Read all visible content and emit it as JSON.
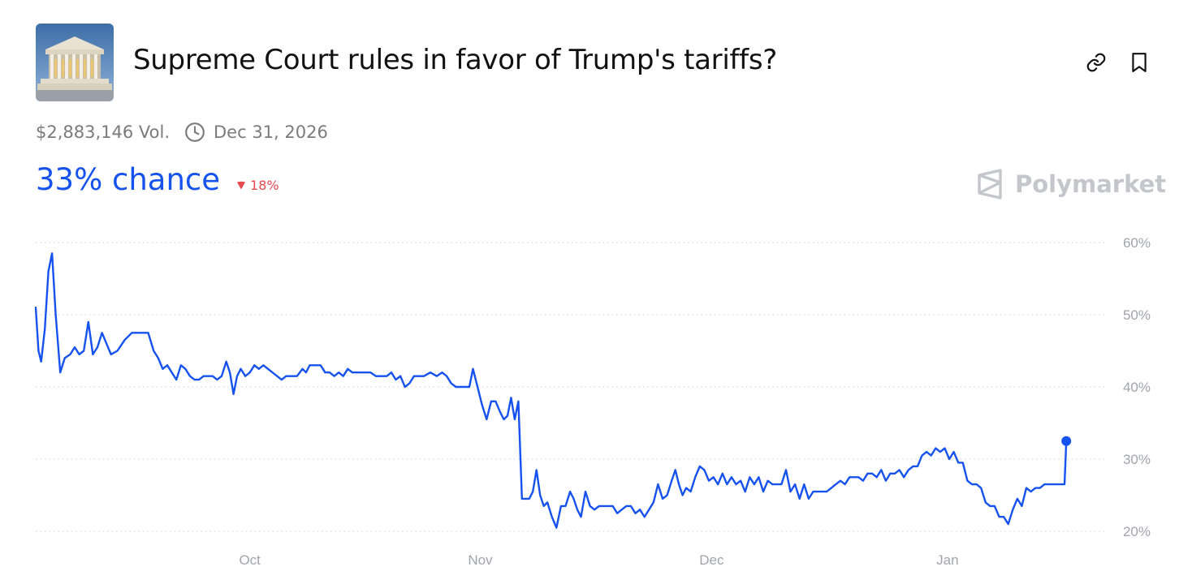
{
  "header": {
    "title": "Supreme Court rules in favor of Trump's tariffs?",
    "thumbnail_icon": "supreme-court-thumbnail",
    "link_icon": "link-icon",
    "bookmark_icon": "bookmark-icon"
  },
  "meta": {
    "volume": "$2,883,146 Vol.",
    "end_date": "Dec 31, 2026"
  },
  "summary": {
    "chance": "33% chance",
    "change": "18%",
    "change_direction": "down"
  },
  "brand": {
    "name": "Polymarket"
  },
  "colors": {
    "accent": "#1652f0",
    "negative": "#e5484d",
    "grid": "#d8dadf",
    "axis_text": "#a0a4ab"
  },
  "chart_data": {
    "type": "line",
    "series": [
      {
        "values": [
          [
            0,
            51
          ],
          [
            0.3,
            45
          ],
          [
            0.6,
            43.5
          ],
          [
            1,
            48
          ],
          [
            1.4,
            56
          ],
          [
            1.8,
            58.5
          ],
          [
            2.2,
            50
          ],
          [
            2.7,
            42
          ],
          [
            3.2,
            44
          ],
          [
            3.8,
            44.5
          ],
          [
            4.3,
            45.5
          ],
          [
            4.8,
            44.5
          ],
          [
            5.3,
            45
          ],
          [
            5.8,
            49
          ],
          [
            6.3,
            44.5
          ],
          [
            6.8,
            45.5
          ],
          [
            7.3,
            47.5
          ],
          [
            7.8,
            46
          ],
          [
            8.3,
            44.5
          ],
          [
            9,
            45
          ],
          [
            9.8,
            46.5
          ],
          [
            10.6,
            47.5
          ],
          [
            11.5,
            47.5
          ],
          [
            12.4,
            47.5
          ],
          [
            13,
            45
          ],
          [
            13.5,
            44
          ],
          [
            14,
            42.5
          ],
          [
            14.5,
            43
          ],
          [
            15,
            42
          ],
          [
            15.5,
            41
          ],
          [
            16,
            43
          ],
          [
            16.5,
            42.5
          ],
          [
            17,
            41.5
          ],
          [
            17.5,
            41
          ],
          [
            18,
            41
          ],
          [
            18.5,
            41.5
          ],
          [
            19,
            41.5
          ],
          [
            19.5,
            41.5
          ],
          [
            20,
            41
          ],
          [
            20.5,
            41.5
          ],
          [
            21,
            43.5
          ],
          [
            21.4,
            42
          ],
          [
            21.8,
            39
          ],
          [
            22.2,
            41.5
          ],
          [
            22.6,
            42.5
          ],
          [
            23.1,
            41.5
          ],
          [
            23.6,
            42
          ],
          [
            24.1,
            43
          ],
          [
            24.6,
            42.5
          ],
          [
            25.1,
            43
          ],
          [
            25.6,
            42.5
          ],
          [
            26.1,
            42
          ],
          [
            26.6,
            41.5
          ],
          [
            27.1,
            41
          ],
          [
            27.6,
            41.5
          ],
          [
            28.2,
            41.5
          ],
          [
            28.8,
            41.5
          ],
          [
            29.4,
            42.5
          ],
          [
            29.8,
            42
          ],
          [
            30.2,
            43
          ],
          [
            30.8,
            43
          ],
          [
            31.4,
            43
          ],
          [
            31.9,
            42
          ],
          [
            32.4,
            42
          ],
          [
            32.9,
            41.5
          ],
          [
            33.4,
            42
          ],
          [
            33.9,
            41.5
          ],
          [
            34.4,
            42.5
          ],
          [
            34.9,
            42
          ],
          [
            35.5,
            42
          ],
          [
            36.2,
            42
          ],
          [
            36.9,
            42
          ],
          [
            37.5,
            41.5
          ],
          [
            38.1,
            41.5
          ],
          [
            38.7,
            41.5
          ],
          [
            39.2,
            42
          ],
          [
            39.7,
            41
          ],
          [
            40.2,
            41.5
          ],
          [
            40.7,
            40
          ],
          [
            41.2,
            40.5
          ],
          [
            41.7,
            41.5
          ],
          [
            42.2,
            41.5
          ],
          [
            42.8,
            41.5
          ],
          [
            43.5,
            42
          ],
          [
            44.2,
            41.5
          ],
          [
            44.8,
            42
          ],
          [
            45.3,
            41.5
          ],
          [
            45.8,
            40.5
          ],
          [
            46.3,
            40
          ],
          [
            46.8,
            40
          ],
          [
            47.3,
            40
          ],
          [
            47.8,
            40
          ],
          [
            48.2,
            42.5
          ],
          [
            48.7,
            40
          ],
          [
            49.2,
            37.5
          ],
          [
            49.7,
            35.5
          ],
          [
            50.2,
            38
          ],
          [
            50.7,
            38
          ],
          [
            51.2,
            36.5
          ],
          [
            51.6,
            35.5
          ],
          [
            52,
            36
          ],
          [
            52.4,
            38.5
          ],
          [
            52.8,
            35.5
          ],
          [
            53.2,
            38
          ],
          [
            53.6,
            24.5
          ],
          [
            54,
            24.5
          ],
          [
            54.4,
            24.5
          ],
          [
            54.8,
            25.5
          ],
          [
            55.2,
            28.5
          ],
          [
            55.6,
            25
          ],
          [
            56,
            23.5
          ],
          [
            56.4,
            24
          ],
          [
            56.9,
            22
          ],
          [
            57.4,
            20.5
          ],
          [
            57.9,
            23.5
          ],
          [
            58.4,
            23.5
          ],
          [
            58.9,
            25.5
          ],
          [
            59.3,
            24.5
          ],
          [
            59.7,
            23
          ],
          [
            60.1,
            22
          ],
          [
            60.6,
            25.5
          ],
          [
            61.1,
            23.5
          ],
          [
            61.6,
            23
          ],
          [
            62.1,
            23.5
          ],
          [
            62.6,
            23.5
          ],
          [
            63.1,
            23.5
          ],
          [
            63.6,
            23.5
          ],
          [
            64.1,
            22.5
          ],
          [
            64.6,
            23
          ],
          [
            65.1,
            23.5
          ],
          [
            65.6,
            23.5
          ],
          [
            66.1,
            22.5
          ],
          [
            66.6,
            23
          ],
          [
            67.1,
            22
          ],
          [
            67.6,
            23
          ],
          [
            68.1,
            24
          ],
          [
            68.6,
            26.5
          ],
          [
            69.1,
            24.5
          ],
          [
            69.6,
            25
          ],
          [
            70.1,
            27
          ],
          [
            70.5,
            28.5
          ],
          [
            70.9,
            26.5
          ],
          [
            71.3,
            25
          ],
          [
            71.7,
            26
          ],
          [
            72.2,
            25.5
          ],
          [
            72.7,
            27.5
          ],
          [
            73.2,
            29
          ],
          [
            73.7,
            28.5
          ],
          [
            74.2,
            27
          ],
          [
            74.7,
            27.5
          ],
          [
            75.2,
            26.5
          ],
          [
            75.7,
            28
          ],
          [
            76.2,
            26.5
          ],
          [
            76.7,
            27.5
          ],
          [
            77.2,
            26.5
          ],
          [
            77.7,
            27
          ],
          [
            78.2,
            25.5
          ],
          [
            78.7,
            27.5
          ],
          [
            79.2,
            26.5
          ],
          [
            79.7,
            27.5
          ],
          [
            80.2,
            25.5
          ],
          [
            80.7,
            27
          ],
          [
            81.2,
            26.5
          ],
          [
            81.7,
            26.5
          ],
          [
            82.2,
            26.5
          ],
          [
            82.7,
            28.5
          ],
          [
            83.2,
            25.5
          ],
          [
            83.7,
            26.5
          ],
          [
            84.2,
            24.5
          ],
          [
            84.7,
            26.5
          ],
          [
            85.2,
            24.5
          ],
          [
            85.7,
            25.5
          ],
          [
            86.2,
            25.5
          ],
          [
            86.7,
            25.5
          ],
          [
            87.2,
            25.5
          ],
          [
            87.7,
            26
          ],
          [
            88.2,
            26.5
          ],
          [
            88.7,
            27
          ],
          [
            89.2,
            26.5
          ],
          [
            89.7,
            27.5
          ],
          [
            90.2,
            27.5
          ],
          [
            90.7,
            27.5
          ],
          [
            91.2,
            27
          ],
          [
            91.7,
            28
          ],
          [
            92.2,
            28
          ],
          [
            92.7,
            27.5
          ],
          [
            93.2,
            28.5
          ],
          [
            93.7,
            27
          ],
          [
            94.2,
            28
          ],
          [
            94.7,
            28
          ],
          [
            95.2,
            28.5
          ],
          [
            95.7,
            27.5
          ],
          [
            96.2,
            28.5
          ],
          [
            96.7,
            29
          ],
          [
            97.2,
            29
          ],
          [
            97.7,
            30.5
          ],
          [
            98.2,
            31
          ],
          [
            98.7,
            30.5
          ],
          [
            99.2,
            31.5
          ],
          [
            99.7,
            31
          ],
          [
            100.2,
            31.5
          ],
          [
            100.7,
            30
          ],
          [
            101.2,
            31
          ],
          [
            101.7,
            29.5
          ],
          [
            102.2,
            29.5
          ],
          [
            102.7,
            27
          ],
          [
            103.2,
            26.5
          ],
          [
            103.7,
            26.5
          ],
          [
            104.2,
            26
          ],
          [
            104.7,
            24
          ],
          [
            105.2,
            23.5
          ],
          [
            105.7,
            23.5
          ],
          [
            106.2,
            22
          ],
          [
            106.7,
            22
          ],
          [
            107.2,
            21
          ],
          [
            107.7,
            23
          ],
          [
            108.2,
            24.5
          ],
          [
            108.7,
            23.5
          ],
          [
            109.2,
            26
          ],
          [
            109.7,
            25.5
          ],
          [
            110.2,
            26
          ],
          [
            110.7,
            26
          ],
          [
            111.2,
            26.5
          ],
          [
            111.7,
            26.5
          ],
          [
            112.2,
            26.5
          ],
          [
            112.7,
            26.5
          ],
          [
            113.2,
            26.5
          ],
          [
            113.4,
            26.5
          ],
          [
            113.6,
            32.5
          ]
        ]
      }
    ],
    "x_ticks": [
      {
        "label": "Oct",
        "x": 23.6
      },
      {
        "label": "Nov",
        "x": 49.0
      },
      {
        "label": "Dec",
        "x": 74.5
      },
      {
        "label": "Jan",
        "x": 100.5
      }
    ],
    "y_ticks": [
      "60%",
      "50%",
      "40%",
      "30%",
      "20%"
    ],
    "y_tick_values": [
      60,
      50,
      40,
      30,
      20
    ],
    "xlim": [
      0,
      116
    ],
    "ylim": [
      20,
      60
    ],
    "grid": true,
    "grid_style": "dotted",
    "last_point_marker": true
  }
}
